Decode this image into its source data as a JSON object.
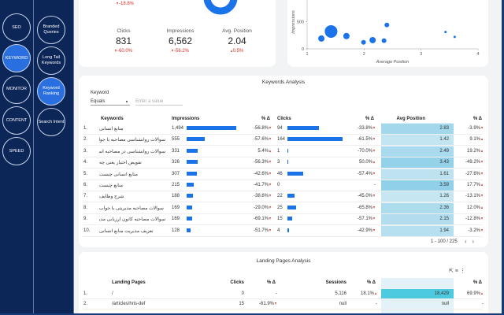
{
  "sidebar": {
    "nav": [
      "SEO",
      "KEYWORD",
      "MONITOR",
      "CONTENT",
      "SPEED"
    ],
    "sub": [
      "Branded Queries",
      "Long Tail Keywords",
      "Keyword Ranking",
      "Search Intent"
    ]
  },
  "summary": {
    "top_change": "-18.8%",
    "metrics": [
      {
        "label": "Clicks",
        "value": "831",
        "change": "-60.0%"
      },
      {
        "label": "Impressions",
        "value": "6,562",
        "change": "-56.2%"
      },
      {
        "label": "Avg. Position",
        "value": "2.04",
        "change": "0.5%"
      }
    ]
  },
  "chart_data": {
    "type": "scatter",
    "ylabel": "Impressions",
    "xlabel": "Average Position",
    "xlim": [
      1,
      4
    ],
    "ylim": [
      0,
      900
    ],
    "xticks": [
      1,
      2,
      3,
      4
    ],
    "yticks": [
      0,
      500
    ],
    "color": "#1a73e8",
    "x": [
      1.42,
      1.25,
      1.69,
      1.99,
      2.15,
      2.35,
      2.4,
      3.43,
      3.59
    ],
    "values": [
      320,
      190,
      235,
      120,
      160,
      150,
      440,
      310,
      220
    ],
    "sizes": [
      8,
      4,
      4,
      3,
      4,
      3,
      3,
      1.5,
      1.5
    ]
  },
  "keywords": {
    "title": "Keywords Analysis",
    "filter_label": "Keyword",
    "operator": "Equals",
    "placeholder": "Enter a value",
    "columns": [
      "Keywords",
      "Impressions",
      "% Δ",
      "Clicks",
      "% Δ",
      "Avg Position",
      "% Δ"
    ],
    "rows": [
      [
        "1.",
        "منابع انسانی",
        "1,494",
        "-56.8%",
        "94",
        "-33.8%",
        "2.83",
        "-3.9%"
      ],
      [
        "2.",
        "سوالات روانشناسی مصاحبه با جواب",
        "555",
        "-57.6%",
        "164",
        "-61.5%",
        "1.42",
        "9.1%"
      ],
      [
        "3.",
        "سوالات روانشناسی در مصاحبه استخدامی",
        "331",
        "5.4%",
        "1",
        "-70.0%",
        "2.49",
        "19.2%"
      ],
      [
        "4.",
        "تفویض اختیار یعنی چه",
        "326",
        "-56.3%",
        "3",
        "50.0%",
        "3.43",
        "-49.2%"
      ],
      [
        "5.",
        "منابع انسانی چیست",
        "307",
        "-42.6%",
        "46",
        "-57.4%",
        "1.61",
        "-27.6%"
      ],
      [
        "6.",
        "منابع چیست",
        "215",
        "-41.7%",
        "0",
        "-",
        "3.59",
        "17.7%"
      ],
      [
        "7.",
        "شرح وظایف",
        "188",
        "-38.6%",
        "22",
        "-45.0%",
        "1.26",
        "-13.1%"
      ],
      [
        "8.",
        "سوالات مصاحبه مدیریتی با جواب",
        "169",
        "-29.0%",
        "25",
        "-65.8%",
        "2.36",
        "12.0%"
      ],
      [
        "9.",
        "سوالات مصاحبه کانون ارزیابی مدیران",
        "169",
        "-69.1%",
        "15",
        "-57.1%",
        "2.15",
        "-12.8%"
      ],
      [
        "10.",
        "تعریف مدیریت منابع انسانی",
        "128",
        "-51.7%",
        "4",
        "-42.9%",
        "1.94",
        "-3.2%"
      ]
    ],
    "pagination": "1 - 100 / 225"
  },
  "landing": {
    "title": "Landing Pages Analysis",
    "columns": [
      "Landing Pages",
      "Clicks",
      "% Δ",
      "Sessions",
      "% Δ",
      "Key events",
      "% Δ"
    ],
    "rows": [
      [
        "1.",
        "/",
        "0",
        "-",
        "5,116",
        "18.1%",
        "18,429",
        "69.9%"
      ],
      [
        "2.",
        "/articles/hris-def",
        "15",
        "-61.9%",
        "null",
        "-",
        "null",
        "-"
      ]
    ]
  }
}
